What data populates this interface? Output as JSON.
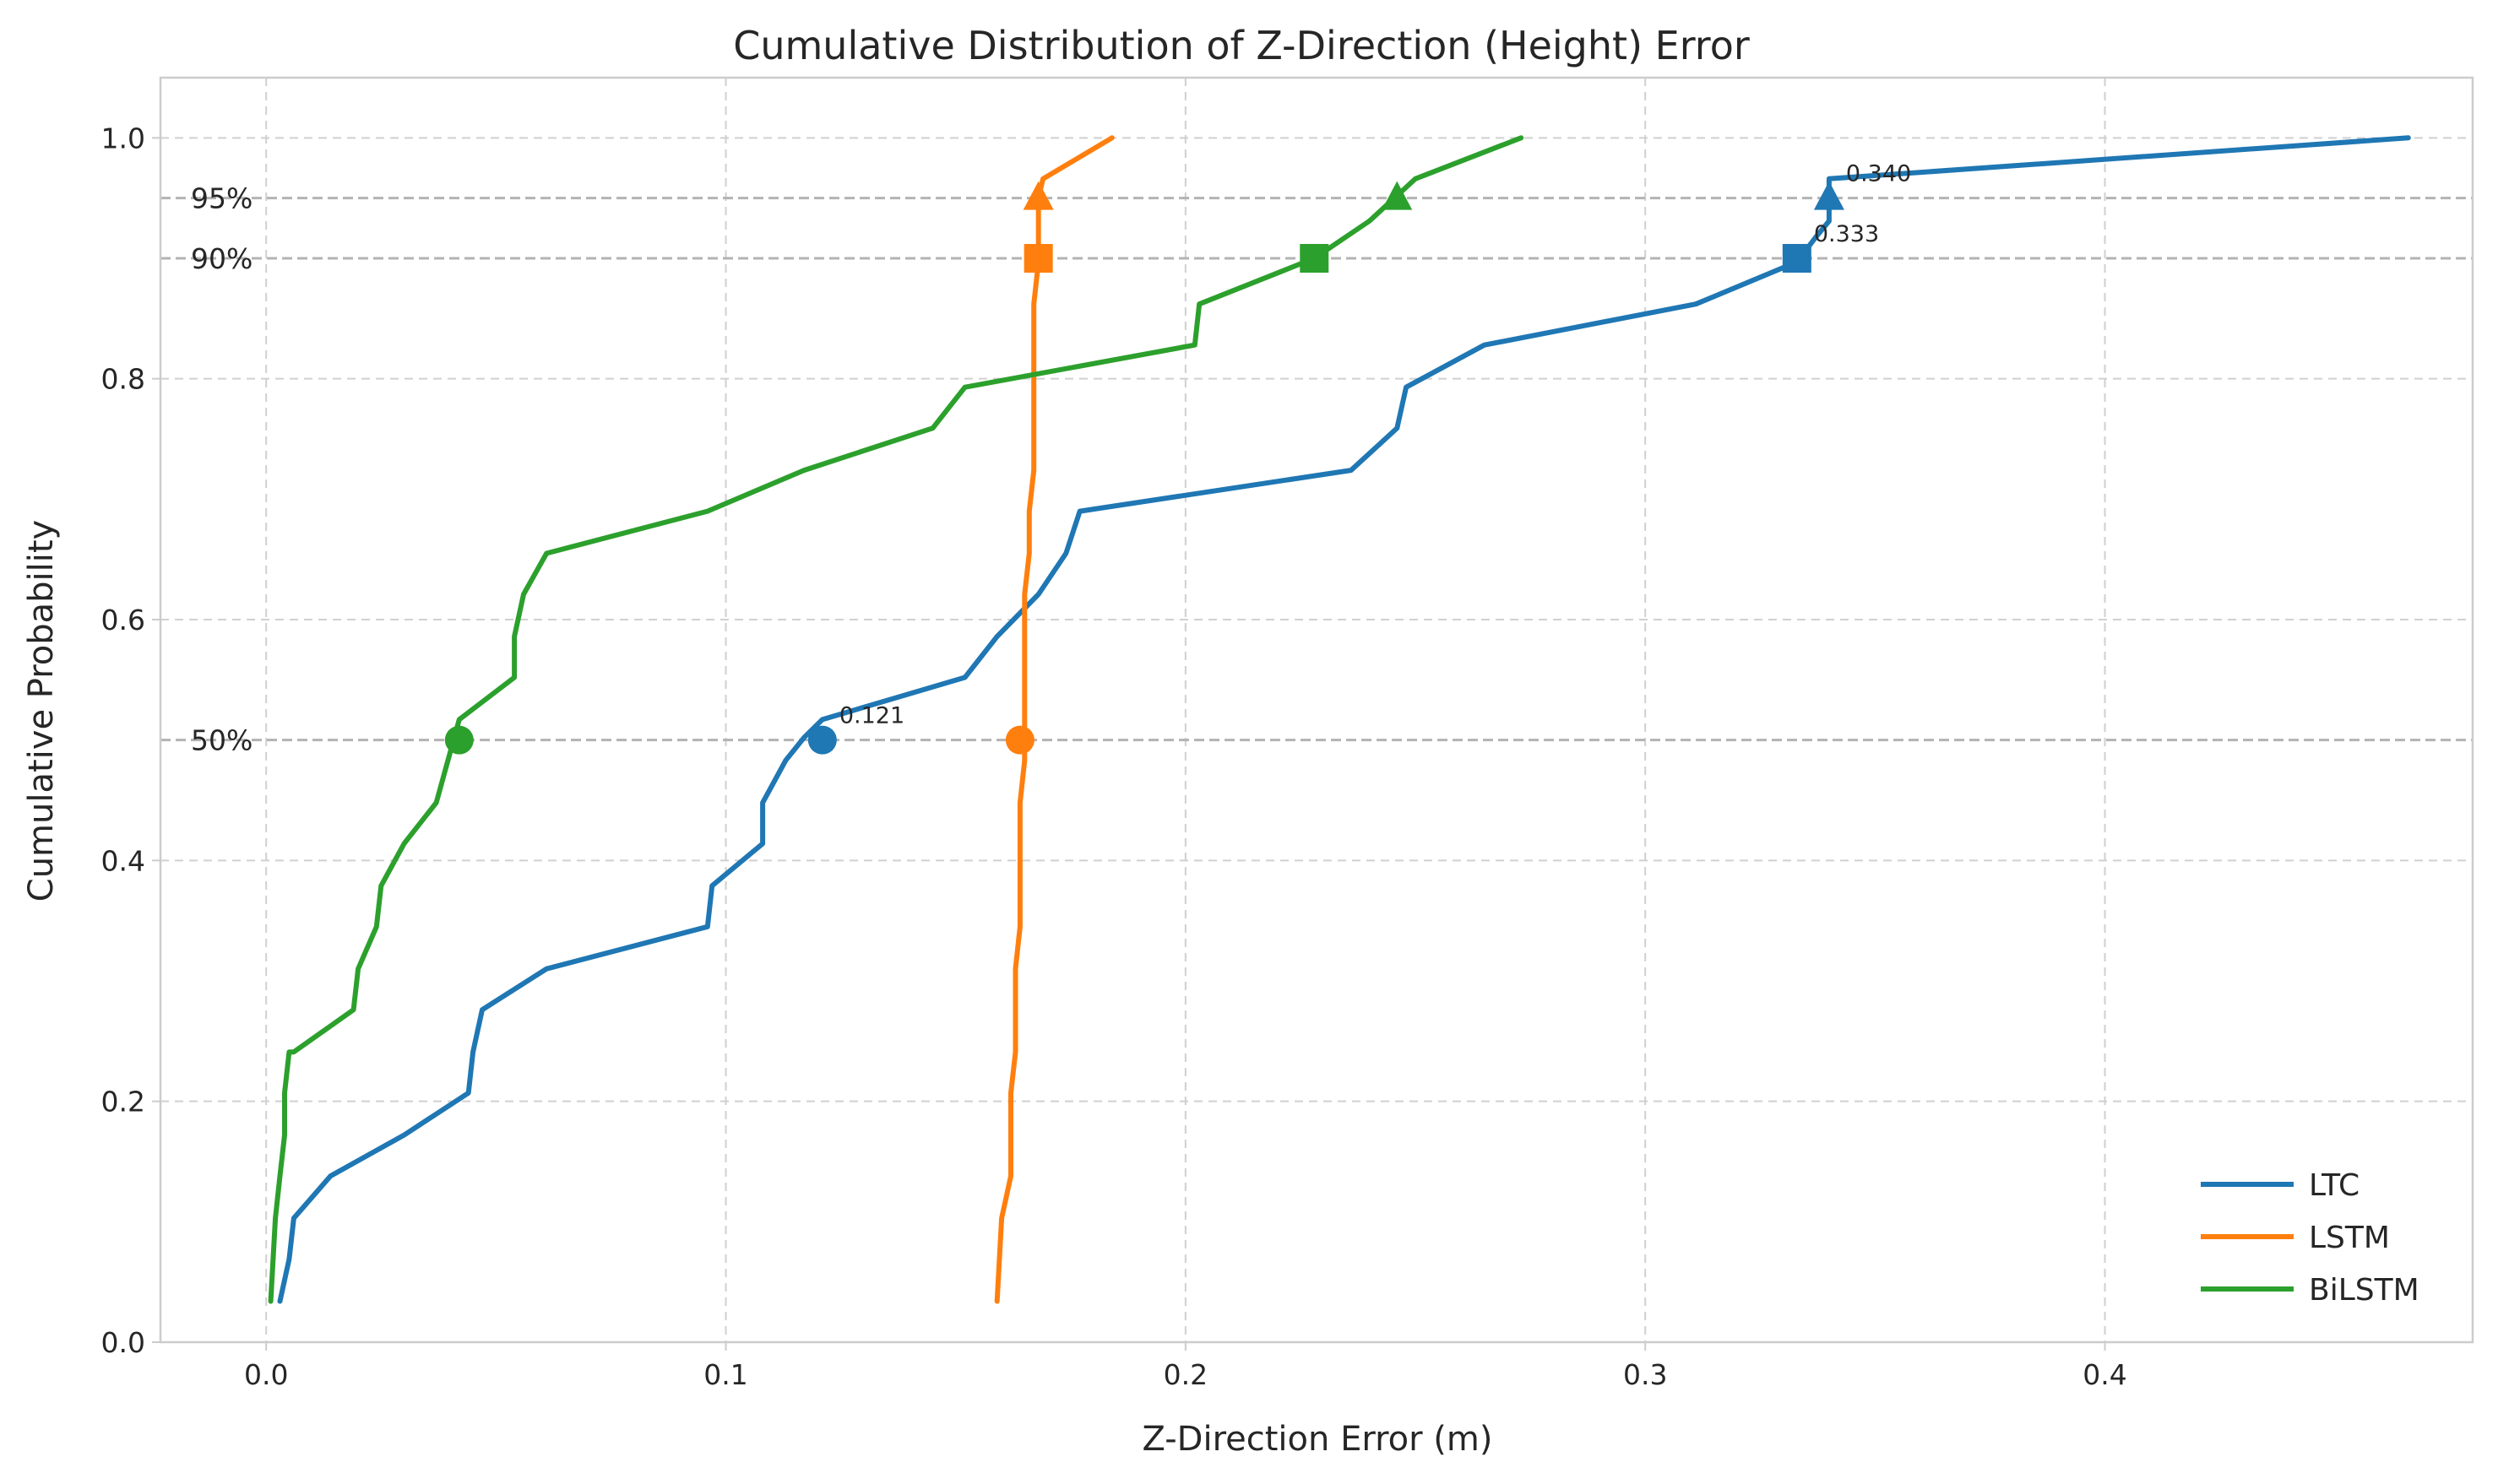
{
  "chart_data": {
    "type": "line",
    "title": "Cumulative Distribution of Z-Direction (Height) Error",
    "xlabel": "Z-Direction Error (m)",
    "ylabel": "Cumulative Probability",
    "xlim": [
      -0.023,
      0.48
    ],
    "ylim": [
      0,
      1.05
    ],
    "xticks": [
      "0.0",
      "0.1",
      "0.2",
      "0.3",
      "0.4"
    ],
    "xtick_values": [
      0,
      0.1,
      0.2,
      0.3,
      0.4
    ],
    "yticks": [
      "0.0",
      "0.2",
      "0.4",
      "0.6",
      "0.8",
      "1.0"
    ],
    "ytick_values": [
      0,
      0.2,
      0.4,
      0.6,
      0.8,
      1.0
    ],
    "grid": true,
    "legend_position": "lower right",
    "reference_lines": [
      {
        "label": "50%",
        "y": 0.5
      },
      {
        "label": "90%",
        "y": 0.9
      },
      {
        "label": "95%",
        "y": 0.95
      }
    ],
    "series": [
      {
        "name": "LTC",
        "color": "#1f77b4",
        "x": [
          0.003,
          0.005,
          0.006,
          0.014,
          0.03,
          0.044,
          0.045,
          0.047,
          0.061,
          0.096,
          0.097,
          0.108,
          0.108,
          0.113,
          0.117,
          0.121,
          0.152,
          0.159,
          0.168,
          0.174,
          0.177,
          0.236,
          0.246,
          0.247,
          0.248,
          0.265,
          0.311,
          0.333,
          0.337,
          0.34,
          0.34,
          0.466
        ],
        "y": [
          0.034,
          0.069,
          0.103,
          0.138,
          0.172,
          0.207,
          0.241,
          0.276,
          0.31,
          0.345,
          0.379,
          0.414,
          0.448,
          0.483,
          0.502,
          0.517,
          0.552,
          0.586,
          0.621,
          0.655,
          0.69,
          0.724,
          0.759,
          0.776,
          0.793,
          0.828,
          0.862,
          0.897,
          0.917,
          0.931,
          0.966,
          1.0
        ]
      },
      {
        "name": "LSTM",
        "color": "#ff7f0e",
        "x": [
          0.159,
          0.16,
          0.162,
          0.162,
          0.163,
          0.163,
          0.164,
          0.164,
          0.164,
          0.165,
          0.165,
          0.165,
          0.166,
          0.166,
          0.167,
          0.167,
          0.167,
          0.168,
          0.168,
          0.168,
          0.169,
          0.184
        ],
        "y": [
          0.034,
          0.103,
          0.138,
          0.207,
          0.241,
          0.31,
          0.345,
          0.379,
          0.448,
          0.483,
          0.552,
          0.621,
          0.655,
          0.69,
          0.724,
          0.793,
          0.862,
          0.897,
          0.931,
          0.95,
          0.966,
          1.0
        ]
      },
      {
        "name": "BiLSTM",
        "color": "#2ca02c",
        "x": [
          0.001,
          0.002,
          0.003,
          0.004,
          0.004,
          0.005,
          0.006,
          0.019,
          0.02,
          0.024,
          0.025,
          0.03,
          0.037,
          0.042,
          0.054,
          0.054,
          0.056,
          0.061,
          0.096,
          0.117,
          0.145,
          0.152,
          0.202,
          0.203,
          0.228,
          0.24,
          0.25,
          0.273
        ],
        "y": [
          0.034,
          0.103,
          0.138,
          0.172,
          0.207,
          0.241,
          0.241,
          0.276,
          0.31,
          0.345,
          0.379,
          0.414,
          0.448,
          0.517,
          0.552,
          0.586,
          0.621,
          0.655,
          0.69,
          0.724,
          0.759,
          0.793,
          0.828,
          0.862,
          0.9,
          0.931,
          0.966,
          1.0
        ]
      }
    ],
    "markers": [
      {
        "series": "LTC",
        "percentile": "50%",
        "shape": "circle",
        "x": 0.121,
        "y": 0.5
      },
      {
        "series": "LTC",
        "percentile": "90%",
        "shape": "square",
        "x": 0.333,
        "y": 0.9
      },
      {
        "series": "LTC",
        "percentile": "95%",
        "shape": "triangle",
        "x": 0.34,
        "y": 0.95
      },
      {
        "series": "LSTM",
        "percentile": "50%",
        "shape": "circle",
        "x": 0.164,
        "y": 0.5
      },
      {
        "series": "LSTM",
        "percentile": "90%",
        "shape": "square",
        "x": 0.168,
        "y": 0.9
      },
      {
        "series": "LSTM",
        "percentile": "95%",
        "shape": "triangle",
        "x": 0.168,
        "y": 0.95
      },
      {
        "series": "BiLSTM",
        "percentile": "50%",
        "shape": "circle",
        "x": 0.042,
        "y": 0.5
      },
      {
        "series": "BiLSTM",
        "percentile": "90%",
        "shape": "square",
        "x": 0.228,
        "y": 0.9
      },
      {
        "series": "BiLSTM",
        "percentile": "95%",
        "shape": "triangle",
        "x": 0.246,
        "y": 0.95
      }
    ],
    "annotations": [
      {
        "text": "0.121",
        "x": 0.121,
        "y": 0.5
      },
      {
        "text": "0.333",
        "x": 0.333,
        "y": 0.9
      },
      {
        "text": "0.340",
        "x": 0.34,
        "y": 0.95
      }
    ]
  }
}
